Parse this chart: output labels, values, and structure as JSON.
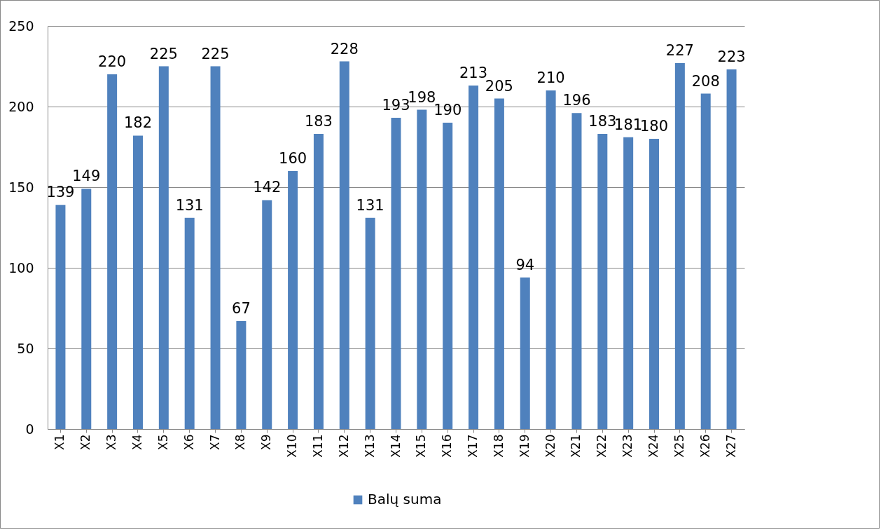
{
  "chart_data": {
    "type": "bar",
    "categories": [
      "X1",
      "X2",
      "X3",
      "X4",
      "X5",
      "X6",
      "X7",
      "X8",
      "X9",
      "X10",
      "X11",
      "X12",
      "X13",
      "X14",
      "X15",
      "X16",
      "X17",
      "X18",
      "X19",
      "X20",
      "X21",
      "X22",
      "X23",
      "X24",
      "X25",
      "X26",
      "X27"
    ],
    "series": [
      {
        "name": "Balų suma",
        "color": "#4f81bd",
        "values": [
          139,
          149,
          220,
          182,
          225,
          131,
          225,
          67,
          142,
          160,
          183,
          228,
          131,
          193,
          198,
          190,
          213,
          205,
          94,
          210,
          196,
          183,
          181,
          180,
          227,
          208,
          223
        ]
      }
    ],
    "ylim": [
      0,
      250
    ],
    "yticks": [
      0,
      50,
      100,
      150,
      200,
      250
    ],
    "grid": "y",
    "legend": "bottom",
    "data_labels": true
  }
}
